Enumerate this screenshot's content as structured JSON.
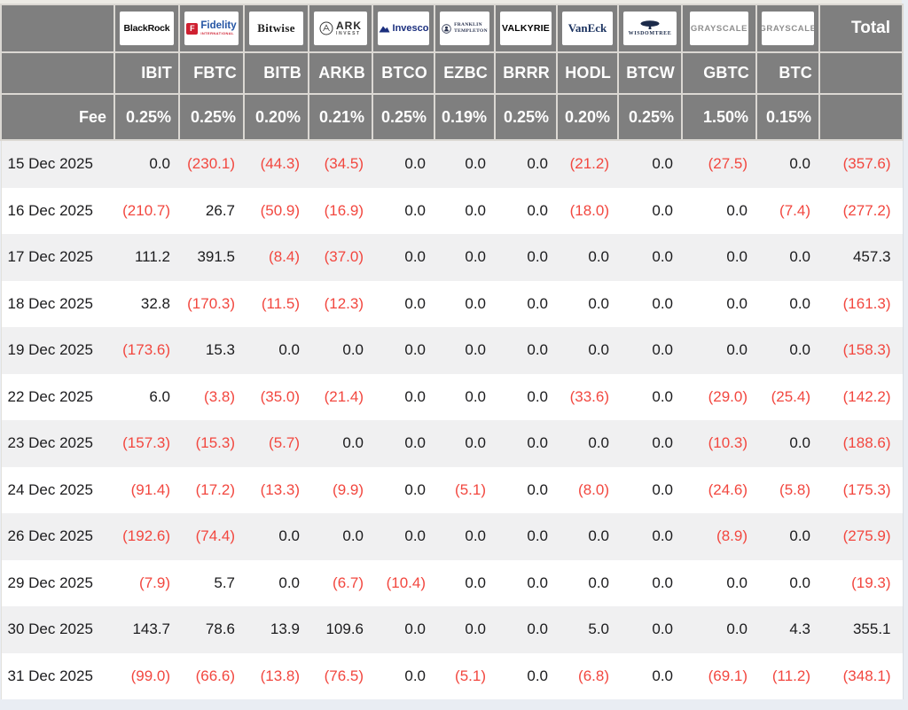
{
  "colors": {
    "header_bg": "#7f7f7f",
    "header_text": "#ffffff",
    "header_border": "#dbd8d3",
    "negative_value": "#f2473f",
    "positive_value": "#1b1b1d",
    "row_stripe": "#f0f0f1",
    "row_plain": "#ffffff",
    "page_bg": "#e9edf3"
  },
  "chart_data": {
    "type": "table",
    "total_label": "Total",
    "fee_label": "Fee",
    "negative_note": "values in parentheses are negative (red)",
    "columns": [
      {
        "provider": "BlackRock",
        "ticker": "IBIT",
        "fee": "0.25%",
        "logo": {
          "kind": "blackrock",
          "text": "BlackRock"
        }
      },
      {
        "provider": "Fidelity",
        "ticker": "FBTC",
        "fee": "0.25%",
        "logo": {
          "kind": "fidelity",
          "icon_letter": "F",
          "text": "Fidelity",
          "subtext": "INTERNATIONAL"
        }
      },
      {
        "provider": "Bitwise",
        "ticker": "BITB",
        "fee": "0.20%",
        "logo": {
          "kind": "bitwise",
          "text": "Bitwise"
        }
      },
      {
        "provider": "ARK Invest",
        "ticker": "ARKB",
        "fee": "0.21%",
        "logo": {
          "kind": "ark",
          "text": "ARK",
          "subtext": "INVEST"
        }
      },
      {
        "provider": "Invesco",
        "ticker": "BTCO",
        "fee": "0.25%",
        "logo": {
          "kind": "invesco",
          "text": "Invesco"
        }
      },
      {
        "provider": "Franklin Templeton",
        "ticker": "EZBC",
        "fee": "0.19%",
        "logo": {
          "kind": "franklin",
          "text": "FRANKLIN",
          "subtext": "TEMPLETON"
        }
      },
      {
        "provider": "Valkyrie",
        "ticker": "BRRR",
        "fee": "0.25%",
        "logo": {
          "kind": "valkyrie",
          "text": "VALKYRIE"
        }
      },
      {
        "provider": "VanEck",
        "ticker": "HODL",
        "fee": "0.20%",
        "logo": {
          "kind": "vaneck",
          "text": "VanEck"
        }
      },
      {
        "provider": "WisdomTree",
        "ticker": "BTCW",
        "fee": "0.25%",
        "logo": {
          "kind": "wisdomtree",
          "text": "WISDOMTREE"
        }
      },
      {
        "provider": "Grayscale",
        "ticker": "GBTC",
        "fee": "1.50%",
        "logo": {
          "kind": "grayscale",
          "text": "GRAYSCALE"
        }
      },
      {
        "provider": "Grayscale",
        "ticker": "BTC",
        "fee": "0.15%",
        "logo": {
          "kind": "grayscale",
          "text": "GRAYSCALE"
        }
      }
    ],
    "rows": [
      {
        "date": "15 Dec 2025",
        "values": [
          "0.0",
          "(230.1)",
          "(44.3)",
          "(34.5)",
          "0.0",
          "0.0",
          "0.0",
          "(21.2)",
          "0.0",
          "(27.5)",
          "0.0"
        ],
        "total": "(357.6)"
      },
      {
        "date": "16 Dec 2025",
        "values": [
          "(210.7)",
          "26.7",
          "(50.9)",
          "(16.9)",
          "0.0",
          "0.0",
          "0.0",
          "(18.0)",
          "0.0",
          "0.0",
          "(7.4)"
        ],
        "total": "(277.2)"
      },
      {
        "date": "17 Dec 2025",
        "values": [
          "111.2",
          "391.5",
          "(8.4)",
          "(37.0)",
          "0.0",
          "0.0",
          "0.0",
          "0.0",
          "0.0",
          "0.0",
          "0.0"
        ],
        "total": "457.3"
      },
      {
        "date": "18 Dec 2025",
        "values": [
          "32.8",
          "(170.3)",
          "(11.5)",
          "(12.3)",
          "0.0",
          "0.0",
          "0.0",
          "0.0",
          "0.0",
          "0.0",
          "0.0"
        ],
        "total": "(161.3)"
      },
      {
        "date": "19 Dec 2025",
        "values": [
          "(173.6)",
          "15.3",
          "0.0",
          "0.0",
          "0.0",
          "0.0",
          "0.0",
          "0.0",
          "0.0",
          "0.0",
          "0.0"
        ],
        "total": "(158.3)"
      },
      {
        "date": "22 Dec 2025",
        "values": [
          "6.0",
          "(3.8)",
          "(35.0)",
          "(21.4)",
          "0.0",
          "0.0",
          "0.0",
          "(33.6)",
          "0.0",
          "(29.0)",
          "(25.4)"
        ],
        "total": "(142.2)"
      },
      {
        "date": "23 Dec 2025",
        "values": [
          "(157.3)",
          "(15.3)",
          "(5.7)",
          "0.0",
          "0.0",
          "0.0",
          "0.0",
          "0.0",
          "0.0",
          "(10.3)",
          "0.0"
        ],
        "total": "(188.6)"
      },
      {
        "date": "24 Dec 2025",
        "values": [
          "(91.4)",
          "(17.2)",
          "(13.3)",
          "(9.9)",
          "0.0",
          "(5.1)",
          "0.0",
          "(8.0)",
          "0.0",
          "(24.6)",
          "(5.8)"
        ],
        "total": "(175.3)"
      },
      {
        "date": "26 Dec 2025",
        "values": [
          "(192.6)",
          "(74.4)",
          "0.0",
          "0.0",
          "0.0",
          "0.0",
          "0.0",
          "0.0",
          "0.0",
          "(8.9)",
          "0.0"
        ],
        "total": "(275.9)"
      },
      {
        "date": "29 Dec 2025",
        "values": [
          "(7.9)",
          "5.7",
          "0.0",
          "(6.7)",
          "(10.4)",
          "0.0",
          "0.0",
          "0.0",
          "0.0",
          "0.0",
          "0.0"
        ],
        "total": "(19.3)"
      },
      {
        "date": "30 Dec 2025",
        "values": [
          "143.7",
          "78.6",
          "13.9",
          "109.6",
          "0.0",
          "0.0",
          "0.0",
          "5.0",
          "0.0",
          "0.0",
          "4.3"
        ],
        "total": "355.1"
      },
      {
        "date": "31 Dec 2025",
        "values": [
          "(99.0)",
          "(66.6)",
          "(13.8)",
          "(76.5)",
          "0.0",
          "(5.1)",
          "0.0",
          "(6.8)",
          "0.0",
          "(69.1)",
          "(11.2)"
        ],
        "total": "(348.1)"
      }
    ]
  }
}
